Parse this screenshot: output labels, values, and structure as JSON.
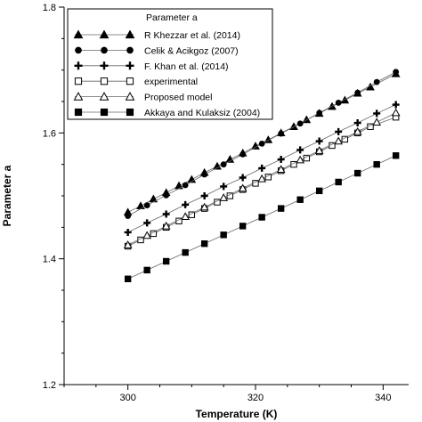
{
  "chart_data": {
    "type": "line",
    "title": "",
    "xlabel": "Temperature (K)",
    "ylabel": "Parameter a",
    "xlim": [
      290,
      344
    ],
    "ylim": [
      1.2,
      1.8
    ],
    "xticks": [
      300,
      320,
      340
    ],
    "yticks": [
      1.2,
      1.4,
      1.6,
      1.8
    ],
    "xtick_labels": [
      "300",
      "320",
      "340"
    ],
    "ytick_labels": [
      "1.2",
      "1.4",
      "1.6",
      "1.8"
    ],
    "grid": false,
    "legend": {
      "title": "Parameter a",
      "placement": "top-left"
    },
    "series": [
      {
        "name": "R Khezzar et al. (2014)",
        "marker": "triangle-filled",
        "x": [
          300,
          302,
          304,
          306,
          308,
          310,
          312,
          314,
          316,
          318,
          320,
          322,
          324,
          326,
          328,
          330,
          332,
          334,
          336,
          338,
          342
        ],
        "y": [
          1.474,
          1.484,
          1.495,
          1.505,
          1.516,
          1.526,
          1.537,
          1.547,
          1.558,
          1.568,
          1.579,
          1.589,
          1.6,
          1.61,
          1.621,
          1.631,
          1.642,
          1.652,
          1.663,
          1.673,
          1.694
        ]
      },
      {
        "name": "Celik & Acikgoz (2007)",
        "marker": "circle-filled",
        "x": [
          300,
          303,
          306,
          309,
          312,
          315,
          318,
          321,
          324,
          327,
          330,
          333,
          336,
          339,
          342
        ],
        "y": [
          1.468,
          1.485,
          1.501,
          1.517,
          1.534,
          1.55,
          1.566,
          1.583,
          1.599,
          1.615,
          1.632,
          1.648,
          1.664,
          1.681,
          1.697
        ]
      },
      {
        "name": "F. Khan et al. (2014)",
        "marker": "plus",
        "x": [
          300,
          303,
          306,
          309,
          312,
          315,
          318,
          321,
          324,
          327,
          330,
          333,
          336,
          339,
          342
        ],
        "y": [
          1.442,
          1.457,
          1.471,
          1.486,
          1.5,
          1.515,
          1.529,
          1.544,
          1.558,
          1.573,
          1.587,
          1.602,
          1.616,
          1.631,
          1.645
        ]
      },
      {
        "name": "experimental",
        "marker": "square-open",
        "x": [
          300,
          302,
          304,
          306,
          308,
          310,
          312,
          314,
          316,
          318,
          320,
          322,
          324,
          326,
          328,
          330,
          332,
          334,
          336,
          338,
          342
        ],
        "y": [
          1.42,
          1.43,
          1.44,
          1.45,
          1.46,
          1.47,
          1.48,
          1.49,
          1.5,
          1.51,
          1.52,
          1.53,
          1.54,
          1.55,
          1.56,
          1.57,
          1.58,
          1.59,
          1.6,
          1.61,
          1.625
        ]
      },
      {
        "name": "Proposed model",
        "marker": "triangle-open",
        "x": [
          300,
          303,
          306,
          309,
          312,
          315,
          318,
          321,
          324,
          327,
          330,
          333,
          336,
          339,
          342
        ],
        "y": [
          1.422,
          1.437,
          1.452,
          1.467,
          1.482,
          1.497,
          1.512,
          1.527,
          1.542,
          1.557,
          1.572,
          1.587,
          1.602,
          1.617,
          1.632
        ]
      },
      {
        "name": "Akkaya and Kulaksiz (2004)",
        "marker": "square-filled",
        "x": [
          300,
          303,
          306,
          309,
          312,
          315,
          318,
          321,
          324,
          327,
          330,
          333,
          336,
          339,
          342
        ],
        "y": [
          1.368,
          1.382,
          1.396,
          1.41,
          1.424,
          1.438,
          1.452,
          1.466,
          1.48,
          1.494,
          1.508,
          1.522,
          1.536,
          1.55,
          1.564
        ]
      }
    ]
  }
}
